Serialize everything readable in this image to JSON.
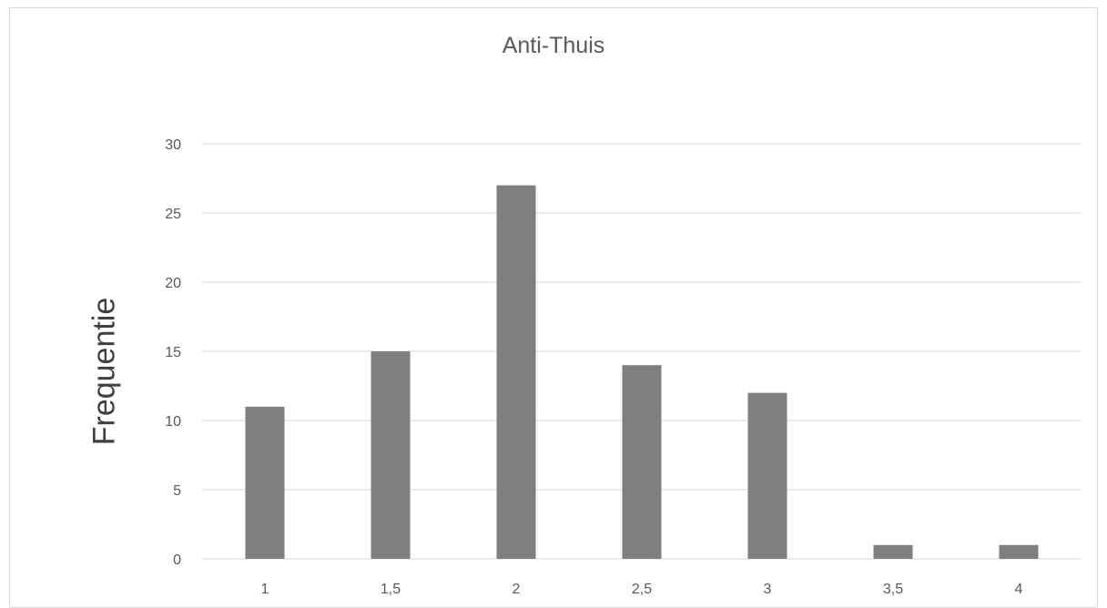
{
  "chart_data": {
    "type": "bar",
    "title": "Anti-Thuis",
    "xlabel": "",
    "ylabel": "Frequentie",
    "categories": [
      "1",
      "1,5",
      "2",
      "2,5",
      "3",
      "3,5",
      "4"
    ],
    "values": [
      11,
      15,
      27,
      14,
      12,
      1,
      1
    ],
    "ylim": [
      0,
      30
    ],
    "yticks": [
      "0",
      "5",
      "10",
      "15",
      "20",
      "25",
      "30"
    ],
    "grid": true,
    "legend": "none",
    "bar_color": "#7f7f7f",
    "grid_color": "#d9d9d9"
  }
}
